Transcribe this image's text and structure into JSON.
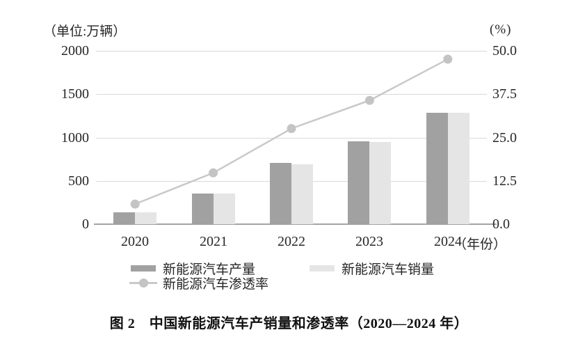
{
  "caption": "图 2　中国新能源汽车产销量和渗透率（2020—2024 年）",
  "chart_data": {
    "type": "bar",
    "subtype": "grouped-bars-with-line",
    "categories": [
      "2020",
      "2021",
      "2022",
      "2023",
      "2024"
    ],
    "x_axis_suffix": "（年份）",
    "left_axis": {
      "title": "（单位:万辆）",
      "ticks": [
        "2000",
        "1500",
        "1000",
        "500",
        "0"
      ],
      "min": 0,
      "max": 2000
    },
    "right_axis": {
      "title": "(%)",
      "ticks": [
        "50.0",
        "37.5",
        "25.0",
        "12.5",
        "0.0"
      ],
      "min": 0,
      "max": 50
    },
    "series": [
      {
        "name": "新能源汽车产量",
        "type": "bar",
        "axis": "left",
        "values": [
          136.6,
          354.5,
          705.8,
          958.7,
          1288.8
        ],
        "color": "#a1a1a1"
      },
      {
        "name": "新能源汽车销量",
        "type": "bar",
        "axis": "left",
        "values": [
          136.7,
          352.1,
          688.7,
          949.5,
          1286.6
        ],
        "color": "#e5e5e5"
      },
      {
        "name": "新能源汽车渗透率",
        "type": "line",
        "axis": "right",
        "values": [
          5.8,
          14.8,
          27.6,
          35.7,
          47.6
        ],
        "color": "#c9c9c9",
        "dot_color": "#c4c4c4"
      }
    ],
    "grid": true,
    "legend_position": "bottom"
  },
  "colors": {
    "gridline": "#d9d9d9",
    "axisline": "#a3a3a3",
    "text": "#262626"
  }
}
